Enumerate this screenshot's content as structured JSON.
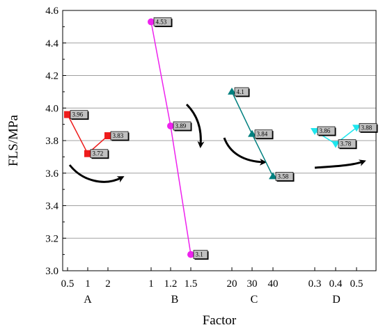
{
  "chart_data": {
    "type": "line",
    "xlabel": "Factor",
    "ylabel": "FLS/MPa",
    "ylim": [
      3.0,
      4.6
    ],
    "yticks": [
      "3.0",
      "3.2",
      "3.4",
      "3.6",
      "3.8",
      "4.0",
      "4.2",
      "4.4",
      "4.6"
    ],
    "grid": "horizontal",
    "series": [
      {
        "group": "A",
        "color": "#ee1c1c",
        "marker": "square",
        "levels": [
          "0.5",
          "1",
          "2"
        ],
        "values": [
          3.96,
          3.72,
          3.83
        ],
        "labels": [
          "3.96",
          "3.72",
          "3.83"
        ],
        "trend_arrow": "curved-down-then-up"
      },
      {
        "group": "B",
        "color": "#ee22ee",
        "marker": "circle",
        "levels": [
          "1",
          "1.2",
          "1.5"
        ],
        "values": [
          4.53,
          3.89,
          3.1
        ],
        "labels": [
          "4.53",
          "3.89",
          "3.1"
        ],
        "trend_arrow": "down"
      },
      {
        "group": "C",
        "color": "#00807f",
        "marker": "triangle-up",
        "levels": [
          "20",
          "30",
          "40"
        ],
        "values": [
          4.1,
          3.84,
          3.58
        ],
        "labels": [
          "4.1",
          "3.84",
          "3.58"
        ],
        "trend_arrow": "down-right"
      },
      {
        "group": "D",
        "color": "#1ee6ee",
        "marker": "triangle-down",
        "levels": [
          "0.3",
          "0.4",
          "0.5"
        ],
        "values": [
          3.86,
          3.78,
          3.88
        ],
        "labels": [
          "3.86",
          "3.78",
          "3.88"
        ],
        "trend_arrow": "slightly-up"
      }
    ]
  }
}
